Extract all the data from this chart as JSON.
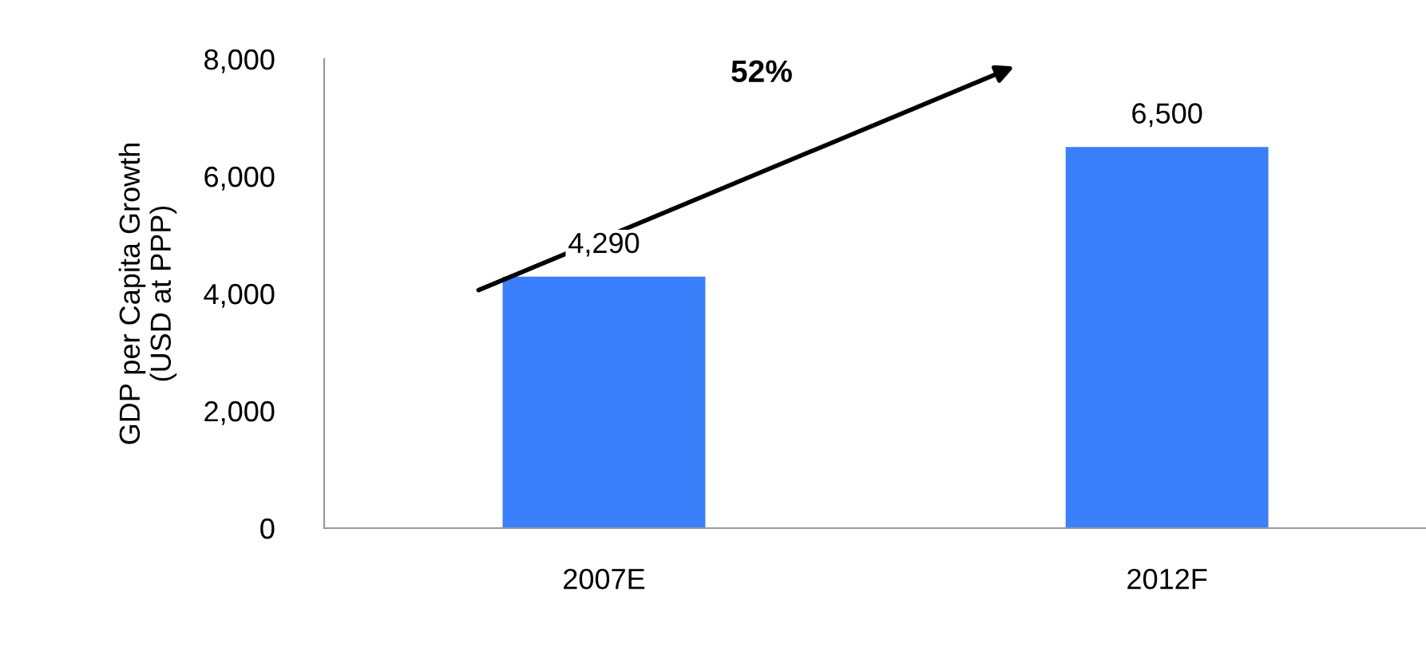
{
  "chart_data": {
    "type": "bar",
    "ylabel": "GDP per Capita Growth\n(USD at PPP)",
    "categories": [
      "2007E",
      "2012F"
    ],
    "values": [
      4290,
      6500
    ],
    "color": "#3a7ffc",
    "ylim": [
      0,
      8000
    ],
    "yticks": [
      0,
      {
        "value": 2000,
        "label": "2,000"
      },
      {
        "value": 4000,
        "label": "4,000"
      },
      {
        "value": 6000,
        "label": "6,000"
      },
      {
        "value": 8000,
        "label": "8,000"
      }
    ],
    "value_labels": [
      "4,290",
      "6,500"
    ],
    "annotations": [
      "52%"
    ],
    "grid": false,
    "legend": false
  }
}
